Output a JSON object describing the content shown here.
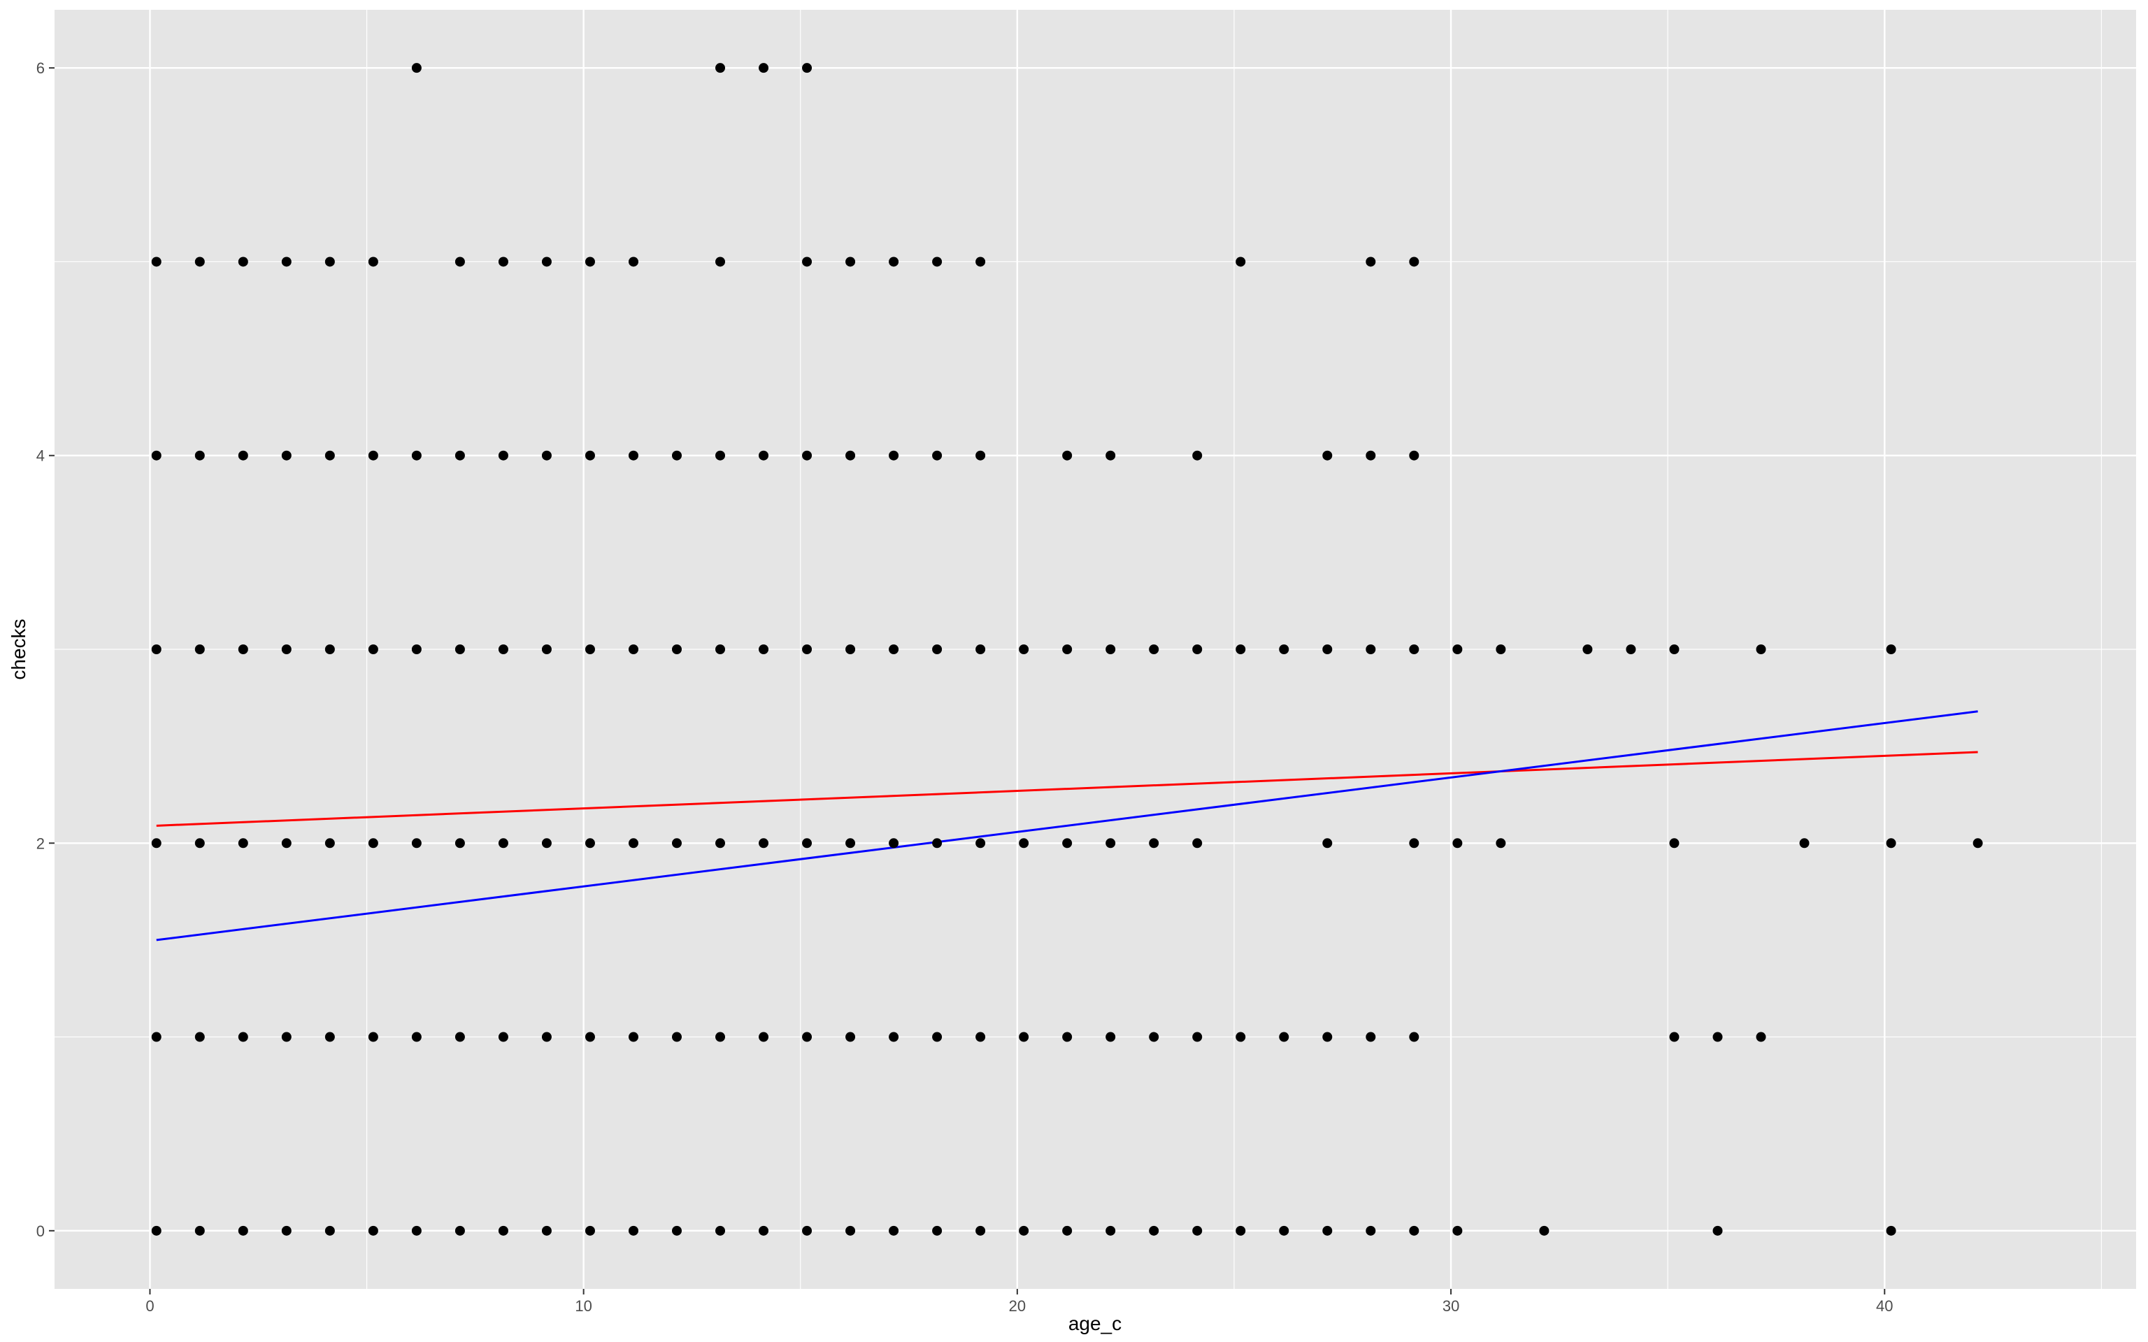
{
  "chart_data": {
    "type": "scatter",
    "xlabel": "age_c",
    "ylabel": "checks",
    "xlim": [
      -2.2,
      45.8
    ],
    "ylim": [
      -0.3,
      6.3
    ],
    "x_ticks": [
      0,
      10,
      20,
      30,
      40
    ],
    "x_tick_labels": [
      "0",
      "10",
      "20",
      "30",
      "40"
    ],
    "y_ticks": [
      0,
      2,
      4,
      6
    ],
    "y_tick_labels": [
      "0",
      "2",
      "4",
      "6"
    ],
    "grid": true,
    "legend": "none",
    "colors": {
      "panel": "#e5e5e5",
      "grid": "#ffffff",
      "points": "#000000",
      "line_red": "#ff0000",
      "line_blue": "#0000ff"
    },
    "points": [
      {
        "y": 6,
        "x": [
          6,
          13,
          14,
          15
        ]
      },
      {
        "y": 5,
        "x": [
          0,
          1,
          2,
          3,
          4,
          5,
          7,
          8,
          9,
          10,
          11,
          13,
          15,
          16,
          17,
          18,
          19,
          25,
          28,
          29
        ]
      },
      {
        "y": 4,
        "x": [
          0,
          1,
          2,
          3,
          4,
          5,
          6,
          7,
          8,
          9,
          10,
          11,
          12,
          13,
          14,
          15,
          16,
          17,
          18,
          19,
          21,
          22,
          24,
          27,
          28,
          29
        ]
      },
      {
        "y": 3,
        "x": [
          0,
          1,
          2,
          3,
          4,
          5,
          6,
          7,
          8,
          9,
          10,
          11,
          12,
          13,
          14,
          15,
          16,
          17,
          18,
          19,
          20,
          21,
          22,
          23,
          24,
          25,
          26,
          27,
          28,
          29,
          30,
          31,
          33,
          34,
          35,
          37,
          40
        ]
      },
      {
        "y": 2,
        "x": [
          0,
          1,
          2,
          3,
          4,
          5,
          6,
          7,
          8,
          9,
          10,
          11,
          12,
          13,
          14,
          15,
          16,
          17,
          18,
          19,
          20,
          21,
          22,
          23,
          24,
          27,
          29,
          30,
          31,
          35,
          38,
          40,
          42
        ]
      },
      {
        "y": 1,
        "x": [
          0,
          1,
          2,
          3,
          4,
          5,
          6,
          7,
          8,
          9,
          10,
          11,
          12,
          13,
          14,
          15,
          16,
          17,
          18,
          19,
          20,
          21,
          22,
          23,
          24,
          25,
          26,
          27,
          28,
          29,
          35,
          36,
          37
        ]
      },
      {
        "y": 0,
        "x": [
          0,
          1,
          2,
          3,
          4,
          5,
          6,
          7,
          8,
          9,
          10,
          11,
          12,
          13,
          14,
          15,
          16,
          17,
          18,
          19,
          20,
          21,
          22,
          23,
          24,
          25,
          26,
          27,
          28,
          29,
          30,
          32,
          36,
          40
        ]
      }
    ],
    "lines": [
      {
        "color": "red",
        "x": [
          0,
          42
        ],
        "y": [
          2.09,
          2.47
        ]
      },
      {
        "color": "blue",
        "x": [
          0,
          42
        ],
        "y": [
          1.5,
          2.68
        ]
      }
    ]
  }
}
